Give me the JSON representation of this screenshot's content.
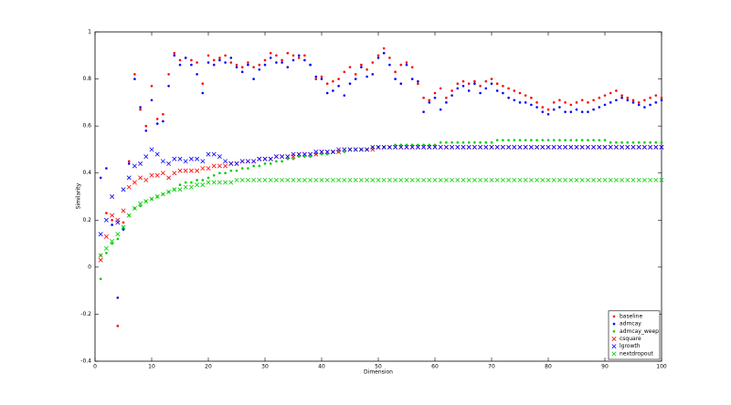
{
  "chart_data": {
    "type": "scatter",
    "xlabel": "Dimension",
    "ylabel": "Similarity",
    "xlim": [
      0,
      100
    ],
    "xticks": [
      0,
      10,
      20,
      30,
      40,
      50,
      60,
      70,
      80,
      90,
      100
    ],
    "ylim": [
      -0.4,
      1
    ],
    "yticks": [
      -0.4,
      -0.2,
      0,
      0.2,
      0.4,
      0.6,
      0.8,
      1
    ],
    "legend": "lower right",
    "x": [
      1,
      2,
      3,
      4,
      5,
      6,
      7,
      8,
      9,
      10,
      11,
      12,
      13,
      14,
      15,
      16,
      17,
      18,
      19,
      20,
      21,
      22,
      23,
      24,
      25,
      26,
      27,
      28,
      29,
      30,
      31,
      32,
      33,
      34,
      35,
      36,
      37,
      38,
      39,
      40,
      41,
      42,
      43,
      44,
      45,
      46,
      47,
      48,
      49,
      50,
      51,
      52,
      53,
      54,
      55,
      56,
      57,
      58,
      59,
      60,
      61,
      62,
      63,
      64,
      65,
      66,
      67,
      68,
      69,
      70,
      71,
      72,
      73,
      74,
      75,
      76,
      77,
      78,
      79,
      80,
      81,
      82,
      83,
      84,
      85,
      86,
      87,
      88,
      89,
      90,
      91,
      92,
      93,
      94,
      95,
      96,
      97,
      98,
      99,
      100
    ],
    "series": [
      {
        "name": "baseline",
        "color": "#ff0000",
        "marker": "dot",
        "values": [
          0.05,
          0.23,
          0.2,
          -0.25,
          0.19,
          0.45,
          0.82,
          0.67,
          0.6,
          0.77,
          0.63,
          0.65,
          0.82,
          0.91,
          0.88,
          0.89,
          0.88,
          0.87,
          0.78,
          0.9,
          0.88,
          0.89,
          0.9,
          0.87,
          0.86,
          0.85,
          0.87,
          0.85,
          0.86,
          0.88,
          0.91,
          0.9,
          0.88,
          0.91,
          0.9,
          0.89,
          0.9,
          0.86,
          0.8,
          0.81,
          0.78,
          0.79,
          0.8,
          0.83,
          0.85,
          0.82,
          0.86,
          0.84,
          0.87,
          0.9,
          0.93,
          0.89,
          0.83,
          0.86,
          0.87,
          0.85,
          0.78,
          0.72,
          0.71,
          0.74,
          0.76,
          0.72,
          0.75,
          0.78,
          0.79,
          0.78,
          0.79,
          0.77,
          0.79,
          0.8,
          0.78,
          0.77,
          0.76,
          0.75,
          0.74,
          0.73,
          0.72,
          0.7,
          0.68,
          0.67,
          0.7,
          0.71,
          0.7,
          0.69,
          0.7,
          0.71,
          0.7,
          0.71,
          0.72,
          0.73,
          0.74,
          0.75,
          0.73,
          0.72,
          0.71,
          0.7,
          0.71,
          0.72,
          0.73,
          0.72
        ]
      },
      {
        "name": "admcay",
        "color": "#0000ff",
        "marker": "dot",
        "values": [
          0.38,
          0.42,
          0.18,
          -0.13,
          0.16,
          0.44,
          0.8,
          0.68,
          0.58,
          0.71,
          0.61,
          0.62,
          0.77,
          0.9,
          0.86,
          0.89,
          0.86,
          0.82,
          0.74,
          0.87,
          0.86,
          0.88,
          0.87,
          0.89,
          0.85,
          0.83,
          0.86,
          0.8,
          0.84,
          0.86,
          0.89,
          0.87,
          0.87,
          0.85,
          0.88,
          0.9,
          0.88,
          0.86,
          0.81,
          0.8,
          0.74,
          0.75,
          0.77,
          0.73,
          0.78,
          0.8,
          0.85,
          0.81,
          0.82,
          0.89,
          0.91,
          0.86,
          0.8,
          0.78,
          0.86,
          0.8,
          0.79,
          0.66,
          0.7,
          0.72,
          0.67,
          0.7,
          0.73,
          0.76,
          0.77,
          0.75,
          0.78,
          0.74,
          0.76,
          0.78,
          0.75,
          0.74,
          0.72,
          0.71,
          0.7,
          0.7,
          0.69,
          0.68,
          0.66,
          0.65,
          0.67,
          0.68,
          0.66,
          0.66,
          0.67,
          0.66,
          0.66,
          0.67,
          0.68,
          0.69,
          0.7,
          0.71,
          0.72,
          0.71,
          0.7,
          0.69,
          0.68,
          0.69,
          0.7,
          0.71
        ]
      },
      {
        "name": "admcay_weep",
        "color": "#00cc00",
        "marker": "dot",
        "values": [
          -0.05,
          0.06,
          0.1,
          0.12,
          0.17,
          0.22,
          0.25,
          0.26,
          0.28,
          0.29,
          0.3,
          0.31,
          0.32,
          0.33,
          0.35,
          0.36,
          0.36,
          0.37,
          0.37,
          0.38,
          0.39,
          0.4,
          0.4,
          0.41,
          0.41,
          0.42,
          0.42,
          0.43,
          0.43,
          0.44,
          0.44,
          0.45,
          0.45,
          0.46,
          0.46,
          0.47,
          0.47,
          0.47,
          0.48,
          0.48,
          0.48,
          0.49,
          0.49,
          0.49,
          0.5,
          0.5,
          0.5,
          0.5,
          0.51,
          0.51,
          0.51,
          0.51,
          0.52,
          0.52,
          0.52,
          0.52,
          0.52,
          0.52,
          0.52,
          0.52,
          0.53,
          0.53,
          0.53,
          0.53,
          0.53,
          0.53,
          0.53,
          0.53,
          0.53,
          0.53,
          0.54,
          0.54,
          0.54,
          0.54,
          0.54,
          0.54,
          0.54,
          0.54,
          0.54,
          0.54,
          0.54,
          0.54,
          0.54,
          0.54,
          0.54,
          0.54,
          0.54,
          0.54,
          0.54,
          0.54,
          0.53,
          0.53,
          0.53,
          0.53,
          0.53,
          0.53,
          0.53,
          0.53,
          0.53,
          0.53
        ]
      },
      {
        "name": "csquare",
        "color": "#ff0000",
        "marker": "x",
        "values": [
          0.03,
          0.13,
          0.22,
          0.2,
          0.24,
          0.34,
          0.36,
          0.38,
          0.37,
          0.39,
          0.39,
          0.4,
          0.38,
          0.4,
          0.41,
          0.41,
          0.41,
          0.41,
          0.42,
          0.42,
          0.43,
          0.43,
          0.43,
          0.44,
          0.44,
          0.45,
          0.45,
          0.45,
          0.46,
          0.46,
          0.46,
          0.47,
          0.47,
          0.47,
          0.47,
          0.48,
          0.48,
          0.48,
          0.48,
          0.49,
          0.49,
          0.49,
          0.49,
          0.5,
          0.5,
          0.5,
          0.5,
          0.5,
          0.5,
          0.51,
          0.51,
          0.51,
          0.51,
          0.51,
          0.51,
          0.51,
          0.51,
          0.51,
          0.51,
          0.51,
          0.51,
          0.51,
          0.51,
          0.51,
          0.51,
          0.51,
          0.51,
          0.51,
          0.51,
          0.51,
          0.51,
          0.51,
          0.51,
          0.51,
          0.51,
          0.51,
          0.51,
          0.51,
          0.51,
          0.51,
          0.51,
          0.51,
          0.51,
          0.51,
          0.51,
          0.51,
          0.51,
          0.51,
          0.51,
          0.51,
          0.51,
          0.51,
          0.51,
          0.51,
          0.51,
          0.51,
          0.51,
          0.51,
          0.51,
          0.51
        ]
      },
      {
        "name": "lgrowth",
        "color": "#0000ff",
        "marker": "x",
        "values": [
          0.14,
          0.2,
          0.3,
          0.19,
          0.33,
          0.38,
          0.43,
          0.44,
          0.47,
          0.5,
          0.48,
          0.45,
          0.44,
          0.46,
          0.46,
          0.45,
          0.46,
          0.46,
          0.45,
          0.48,
          0.48,
          0.47,
          0.45,
          0.44,
          0.44,
          0.45,
          0.45,
          0.45,
          0.46,
          0.46,
          0.46,
          0.47,
          0.47,
          0.47,
          0.48,
          0.48,
          0.48,
          0.48,
          0.49,
          0.49,
          0.49,
          0.49,
          0.5,
          0.5,
          0.5,
          0.5,
          0.5,
          0.5,
          0.51,
          0.51,
          0.51,
          0.51,
          0.51,
          0.51,
          0.51,
          0.51,
          0.51,
          0.51,
          0.51,
          0.51,
          0.51,
          0.51,
          0.51,
          0.51,
          0.51,
          0.51,
          0.51,
          0.51,
          0.51,
          0.51,
          0.51,
          0.51,
          0.51,
          0.51,
          0.51,
          0.51,
          0.51,
          0.51,
          0.51,
          0.51,
          0.51,
          0.51,
          0.51,
          0.51,
          0.51,
          0.51,
          0.51,
          0.51,
          0.51,
          0.51,
          0.51,
          0.51,
          0.51,
          0.51,
          0.51,
          0.51,
          0.51,
          0.51,
          0.51,
          0.51
        ]
      },
      {
        "name": "nextdropout",
        "color": "#00cc00",
        "marker": "x",
        "values": [
          0.05,
          0.08,
          0.11,
          0.14,
          0.17,
          0.22,
          0.25,
          0.27,
          0.28,
          0.29,
          0.3,
          0.31,
          0.32,
          0.33,
          0.33,
          0.34,
          0.34,
          0.35,
          0.35,
          0.36,
          0.36,
          0.36,
          0.36,
          0.36,
          0.37,
          0.37,
          0.37,
          0.37,
          0.37,
          0.37,
          0.37,
          0.37,
          0.37,
          0.37,
          0.37,
          0.37,
          0.37,
          0.37,
          0.37,
          0.37,
          0.37,
          0.37,
          0.37,
          0.37,
          0.37,
          0.37,
          0.37,
          0.37,
          0.37,
          0.37,
          0.37,
          0.37,
          0.37,
          0.37,
          0.37,
          0.37,
          0.37,
          0.37,
          0.37,
          0.37,
          0.37,
          0.37,
          0.37,
          0.37,
          0.37,
          0.37,
          0.37,
          0.37,
          0.37,
          0.37,
          0.37,
          0.37,
          0.37,
          0.37,
          0.37,
          0.37,
          0.37,
          0.37,
          0.37,
          0.37,
          0.37,
          0.37,
          0.37,
          0.37,
          0.37,
          0.37,
          0.37,
          0.37,
          0.37,
          0.37,
          0.37,
          0.37,
          0.37,
          0.37,
          0.37,
          0.37,
          0.37,
          0.37,
          0.37,
          0.37
        ]
      }
    ]
  }
}
